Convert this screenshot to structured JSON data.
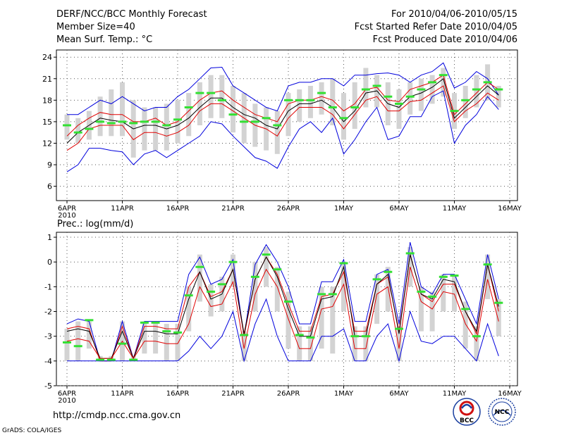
{
  "header": {
    "title": "DERF/NCC/BCC Monthly Forecast",
    "member_size": "Member Size=40",
    "variable": "Mean Surf. Temp.: °C",
    "period": "For 2010/04/06-2010/05/15",
    "start_date": "Fcst Started Refer Date 2010/04/05",
    "produced_date": "Fcst Produced Date 2010/04/06"
  },
  "footer": {
    "url": "http://cmdp.ncc.cma.gov.cn",
    "credit": "GrADS: COLA/IGES",
    "logo_bcc": "BCC",
    "logo_ncc": "NCC"
  },
  "colors": {
    "blue": "#0000dd",
    "red": "#e00000",
    "black": "#000000",
    "green": "#33e033",
    "bar": "#d3d3d3",
    "grid": "#555555"
  },
  "chart_data": [
    {
      "type": "line",
      "title": "Mean Surf. Temp.: °C",
      "ylim": [
        4,
        25
      ],
      "yticks": [
        6,
        9,
        12,
        15,
        18,
        21,
        24
      ],
      "xticks": [
        {
          "day": 0,
          "label": "6APR",
          "sub": "2010"
        },
        {
          "day": 5,
          "label": "11APR"
        },
        {
          "day": 10,
          "label": "16APR"
        },
        {
          "day": 15,
          "label": "21APR"
        },
        {
          "day": 20,
          "label": "26APR"
        },
        {
          "day": 25,
          "label": "1MAY"
        },
        {
          "day": 30,
          "label": "6MAY"
        },
        {
          "day": 35,
          "label": "11MAY"
        },
        {
          "day": 40,
          "label": "16MAY"
        }
      ],
      "x_days": [
        0,
        1,
        2,
        3,
        4,
        5,
        6,
        7,
        8,
        9,
        10,
        11,
        12,
        13,
        14,
        15,
        16,
        17,
        18,
        19,
        20,
        21,
        22,
        23,
        24,
        25,
        26,
        27,
        28,
        29,
        30,
        31,
        32,
        33,
        34,
        35,
        36,
        37,
        38,
        39
      ],
      "series": [
        {
          "name": "max",
          "color": "blue",
          "values": [
            16.0,
            16.0,
            17.0,
            18.0,
            17.5,
            18.5,
            17.5,
            16.5,
            17.0,
            17.0,
            18.5,
            19.5,
            21.0,
            22.5,
            22.6,
            20.0,
            19.0,
            18.0,
            17.0,
            16.5,
            20.0,
            20.5,
            20.5,
            21.0,
            21.0,
            20.0,
            21.5,
            21.5,
            21.7,
            21.8,
            21.5,
            20.5,
            21.5,
            22.0,
            23.2,
            19.7,
            20.5,
            22.0,
            21.0,
            18.7
          ]
        },
        {
          "name": "upper",
          "color": "red",
          "values": [
            13.0,
            14.5,
            15.5,
            16.3,
            16.0,
            16.0,
            15.0,
            15.0,
            15.5,
            14.5,
            15.0,
            16.5,
            18.0,
            19.0,
            19.3,
            18.0,
            17.0,
            16.0,
            15.5,
            15.0,
            17.5,
            18.0,
            18.0,
            18.5,
            18.0,
            16.5,
            17.5,
            19.5,
            19.8,
            18.0,
            17.8,
            19.5,
            20.0,
            20.5,
            21.5,
            16.0,
            17.5,
            19.0,
            20.5,
            19.5
          ]
        },
        {
          "name": "mean",
          "color": "black",
          "values": [
            12.0,
            13.5,
            14.5,
            15.5,
            15.2,
            15.0,
            14.0,
            14.5,
            14.5,
            14.0,
            14.5,
            15.5,
            17.0,
            18.3,
            18.3,
            17.0,
            16.0,
            15.5,
            14.5,
            14.0,
            16.5,
            17.5,
            17.5,
            18.0,
            17.0,
            15.0,
            16.5,
            19.0,
            19.3,
            17.5,
            17.0,
            18.5,
            19.0,
            19.8,
            21.0,
            15.5,
            17.0,
            18.5,
            20.0,
            18.7
          ]
        },
        {
          "name": "lower",
          "color": "red",
          "values": [
            11.0,
            12.0,
            14.0,
            14.5,
            14.5,
            14.5,
            12.5,
            13.5,
            13.5,
            13.0,
            13.5,
            14.5,
            16.5,
            17.5,
            17.5,
            16.5,
            15.5,
            14.5,
            14.0,
            13.0,
            15.5,
            17.0,
            17.0,
            17.0,
            16.0,
            14.0,
            16.0,
            18.0,
            18.5,
            16.5,
            16.5,
            17.8,
            18.0,
            19.0,
            20.0,
            15.0,
            16.5,
            17.5,
            19.0,
            18.0
          ]
        },
        {
          "name": "min",
          "color": "blue",
          "values": [
            8.0,
            9.0,
            11.3,
            11.3,
            11.0,
            10.8,
            9.0,
            10.5,
            11.0,
            10.0,
            11.0,
            12.0,
            13.0,
            15.0,
            14.7,
            13.0,
            11.5,
            10.0,
            9.5,
            8.5,
            11.5,
            14.0,
            15.0,
            13.5,
            15.5,
            10.5,
            12.5,
            15.0,
            17.0,
            12.5,
            13.0,
            15.7,
            15.7,
            18.5,
            19.3,
            12.0,
            14.5,
            16.0,
            18.5,
            16.7
          ]
        }
      ],
      "bars": {
        "low": [
          12.5,
          12.0,
          12.5,
          13.0,
          13.0,
          13.0,
          10.0,
          11.0,
          11.0,
          11.0,
          12.0,
          13.0,
          14.5,
          15.5,
          15.5,
          13.5,
          12.0,
          11.5,
          11.0,
          10.5,
          13.0,
          15.0,
          15.5,
          16.0,
          14.5,
          12.5,
          14.0,
          17.0,
          17.0,
          14.5,
          14.0,
          16.0,
          16.5,
          17.5,
          18.5,
          14.0,
          15.5,
          17.0,
          18.0,
          17.0
        ],
        "high": [
          16.0,
          15.5,
          16.5,
          18.5,
          19.5,
          20.5,
          18.0,
          17.0,
          17.0,
          17.5,
          18.0,
          19.0,
          20.5,
          21.5,
          21.5,
          20.0,
          19.0,
          17.5,
          17.0,
          16.5,
          19.0,
          19.5,
          20.0,
          20.5,
          21.0,
          19.0,
          20.5,
          22.5,
          21.5,
          20.5,
          19.5,
          20.5,
          21.0,
          21.5,
          22.5,
          19.0,
          20.0,
          21.5,
          23.0,
          20.0
        ]
      },
      "observed": [
        14.5,
        13.5,
        14.0,
        15.0,
        14.8,
        15.0,
        14.8,
        15.0,
        15.0,
        14.5,
        15.3,
        17.0,
        19.0,
        19.0,
        18.0,
        16.0,
        15.0,
        15.0,
        15.5,
        14.5,
        18.0,
        18.0,
        18.0,
        19.0,
        17.0,
        15.5,
        17.0,
        19.5,
        20.0,
        18.5,
        17.5,
        18.5,
        19.5,
        20.5,
        21.5,
        16.5,
        18.0,
        19.5,
        20.5,
        19.5
      ]
    },
    {
      "type": "line",
      "title": "Prec.: log(mm/d)",
      "ylim": [
        -5,
        1.2
      ],
      "yticks": [
        -5,
        -4,
        -3,
        -2,
        -1,
        0,
        1
      ],
      "xticks": [
        {
          "day": 0,
          "label": "6APR",
          "sub": "2010"
        },
        {
          "day": 5,
          "label": "11APR"
        },
        {
          "day": 10,
          "label": "16APR"
        },
        {
          "day": 15,
          "label": "21APR"
        },
        {
          "day": 20,
          "label": "26APR"
        },
        {
          "day": 25,
          "label": "1MAY"
        },
        {
          "day": 30,
          "label": "6MAY"
        },
        {
          "day": 35,
          "label": "11MAY"
        },
        {
          "day": 40,
          "label": "16MAY"
        }
      ],
      "x_days": [
        0,
        1,
        2,
        3,
        4,
        5,
        6,
        7,
        8,
        9,
        10,
        11,
        12,
        13,
        14,
        15,
        16,
        17,
        18,
        19,
        20,
        21,
        22,
        23,
        24,
        25,
        26,
        27,
        28,
        29,
        30,
        31,
        32,
        33,
        34,
        35,
        36,
        37,
        38,
        39
      ],
      "series": [
        {
          "name": "max",
          "color": "blue",
          "values": [
            -2.5,
            -2.3,
            -2.4,
            -4.0,
            -4.0,
            -2.4,
            -3.9,
            -2.4,
            -2.4,
            -2.4,
            -2.4,
            -0.5,
            0.2,
            -0.9,
            -0.7,
            0.1,
            -3.0,
            -0.1,
            0.7,
            0.0,
            -1.0,
            -2.5,
            -2.5,
            -0.8,
            -0.8,
            0.1,
            -2.4,
            -2.4,
            -0.5,
            -0.3,
            -2.5,
            0.8,
            -1.0,
            -1.3,
            -0.5,
            -0.5,
            -1.5,
            -2.5,
            0.3,
            -1.5
          ]
        },
        {
          "name": "upper",
          "color": "red",
          "values": [
            -2.7,
            -2.6,
            -2.7,
            -4.0,
            -4.0,
            -2.6,
            -3.9,
            -2.6,
            -2.6,
            -2.7,
            -2.7,
            -1.0,
            -0.4,
            -1.4,
            -1.2,
            -0.3,
            -3.0,
            -0.7,
            0.2,
            -0.5,
            -1.7,
            -2.8,
            -2.8,
            -1.4,
            -1.3,
            -0.4,
            -2.8,
            -2.8,
            -0.9,
            -0.6,
            -2.8,
            0.3,
            -1.3,
            -1.6,
            -0.9,
            -0.9,
            -2.0,
            -2.9,
            -0.1,
            -2.0
          ]
        },
        {
          "name": "mean",
          "color": "black",
          "values": [
            -2.8,
            -2.7,
            -2.8,
            -3.9,
            -3.9,
            -2.8,
            -3.9,
            -2.8,
            -2.8,
            -2.9,
            -2.9,
            -1.5,
            -0.4,
            -1.5,
            -1.3,
            -0.3,
            -2.9,
            -0.7,
            0.2,
            -0.6,
            -1.9,
            -3.0,
            -3.0,
            -1.5,
            -1.4,
            -0.2,
            -3.0,
            -3.0,
            -0.9,
            -0.5,
            -2.9,
            0.3,
            -1.3,
            -1.5,
            -0.7,
            -0.8,
            -2.0,
            -2.8,
            -0.1,
            -1.8
          ]
        },
        {
          "name": "lower",
          "color": "red",
          "values": [
            -3.2,
            -3.1,
            -3.2,
            -3.9,
            -3.9,
            -3.2,
            -3.9,
            -3.2,
            -3.2,
            -3.3,
            -3.3,
            -2.5,
            -1.0,
            -1.8,
            -1.7,
            -0.8,
            -3.5,
            -1.3,
            -0.3,
            -1.0,
            -2.3,
            -3.5,
            -3.5,
            -1.9,
            -1.8,
            -0.9,
            -3.5,
            -3.5,
            -1.3,
            -1.0,
            -3.5,
            -0.2,
            -1.6,
            -1.9,
            -1.2,
            -1.3,
            -2.5,
            -3.2,
            -0.7,
            -2.4
          ]
        },
        {
          "name": "min",
          "color": "blue",
          "values": [
            -4.0,
            -4.0,
            -4.0,
            -4.0,
            -4.0,
            -4.0,
            -4.0,
            -4.0,
            -4.0,
            -4.0,
            -4.0,
            -3.6,
            -3.0,
            -3.5,
            -3.0,
            -2.0,
            -4.0,
            -2.5,
            -1.5,
            -3.0,
            -4.0,
            -4.0,
            -4.0,
            -3.0,
            -3.0,
            -2.7,
            -4.0,
            -4.0,
            -3.0,
            -2.5,
            -4.0,
            -2.0,
            -3.2,
            -3.3,
            -3.0,
            -3.0,
            -3.5,
            -4.0,
            -2.5,
            -3.8
          ]
        },
        {
          "name": "observed",
          "color": "green",
          "values": [
            -3.25,
            -3.4,
            -2.35,
            -3.95,
            -3.95,
            -3.3,
            -3.95,
            -2.45,
            -2.45,
            -2.8,
            -2.85,
            -1.35,
            -0.2,
            -1.2,
            -0.9,
            0.0,
            -2.95,
            -0.6,
            0.3,
            -0.3,
            -1.6,
            -2.95,
            -3.05,
            -1.3,
            -1.3,
            -0.05,
            -3.0,
            -3.0,
            -0.7,
            -0.4,
            -2.7,
            0.35,
            -1.2,
            -1.4,
            -0.6,
            -0.55,
            -1.9,
            -3.0,
            -0.1,
            -1.65
          ]
        }
      ],
      "bars": {
        "low": [
          -4.0,
          -4.0,
          -3.5,
          -4.0,
          -4.0,
          -4.0,
          -4.0,
          -3.7,
          -3.7,
          -4.0,
          -4.0,
          -2.8,
          -1.6,
          -2.2,
          -2.0,
          -1.0,
          -4.0,
          -2.0,
          -1.0,
          -2.0,
          -3.5,
          -4.0,
          -4.0,
          -3.5,
          -3.7,
          -2.0,
          -4.0,
          -4.0,
          -2.5,
          -2.0,
          -4.0,
          -1.0,
          -2.8,
          -2.8,
          -2.0,
          -2.0,
          -3.5,
          -4.0,
          -1.5,
          -3.0
        ],
        "high": [
          -2.7,
          -2.4,
          -2.4,
          -3.8,
          -3.8,
          -2.4,
          -3.8,
          -2.4,
          -2.4,
          -2.5,
          -2.5,
          -1.0,
          0.3,
          -0.9,
          -0.6,
          0.3,
          -2.8,
          0.0,
          0.6,
          -0.2,
          -1.2,
          -2.6,
          -2.6,
          -1.0,
          -1.0,
          0.0,
          -2.6,
          -2.6,
          -0.5,
          -0.2,
          -2.6,
          0.6,
          -1.0,
          -1.2,
          -0.5,
          -0.5,
          -1.6,
          -2.6,
          0.3,
          -1.5
        ]
      },
      "observed": [
        -3.25,
        -3.4,
        -2.35,
        -3.95,
        -3.95,
        -3.3,
        -3.95,
        -2.45,
        -2.45,
        -2.8,
        -2.85,
        -1.35,
        -0.2,
        -1.2,
        -0.9,
        0.0,
        -2.95,
        -0.6,
        0.3,
        -0.3,
        -1.6,
        -2.95,
        -3.05,
        -1.3,
        -1.3,
        -0.05,
        -3.0,
        -3.0,
        -0.7,
        -0.4,
        -2.7,
        0.35,
        -1.2,
        -1.4,
        -0.6,
        -0.55,
        -1.9,
        -3.0,
        -0.1,
        -1.65
      ]
    }
  ]
}
